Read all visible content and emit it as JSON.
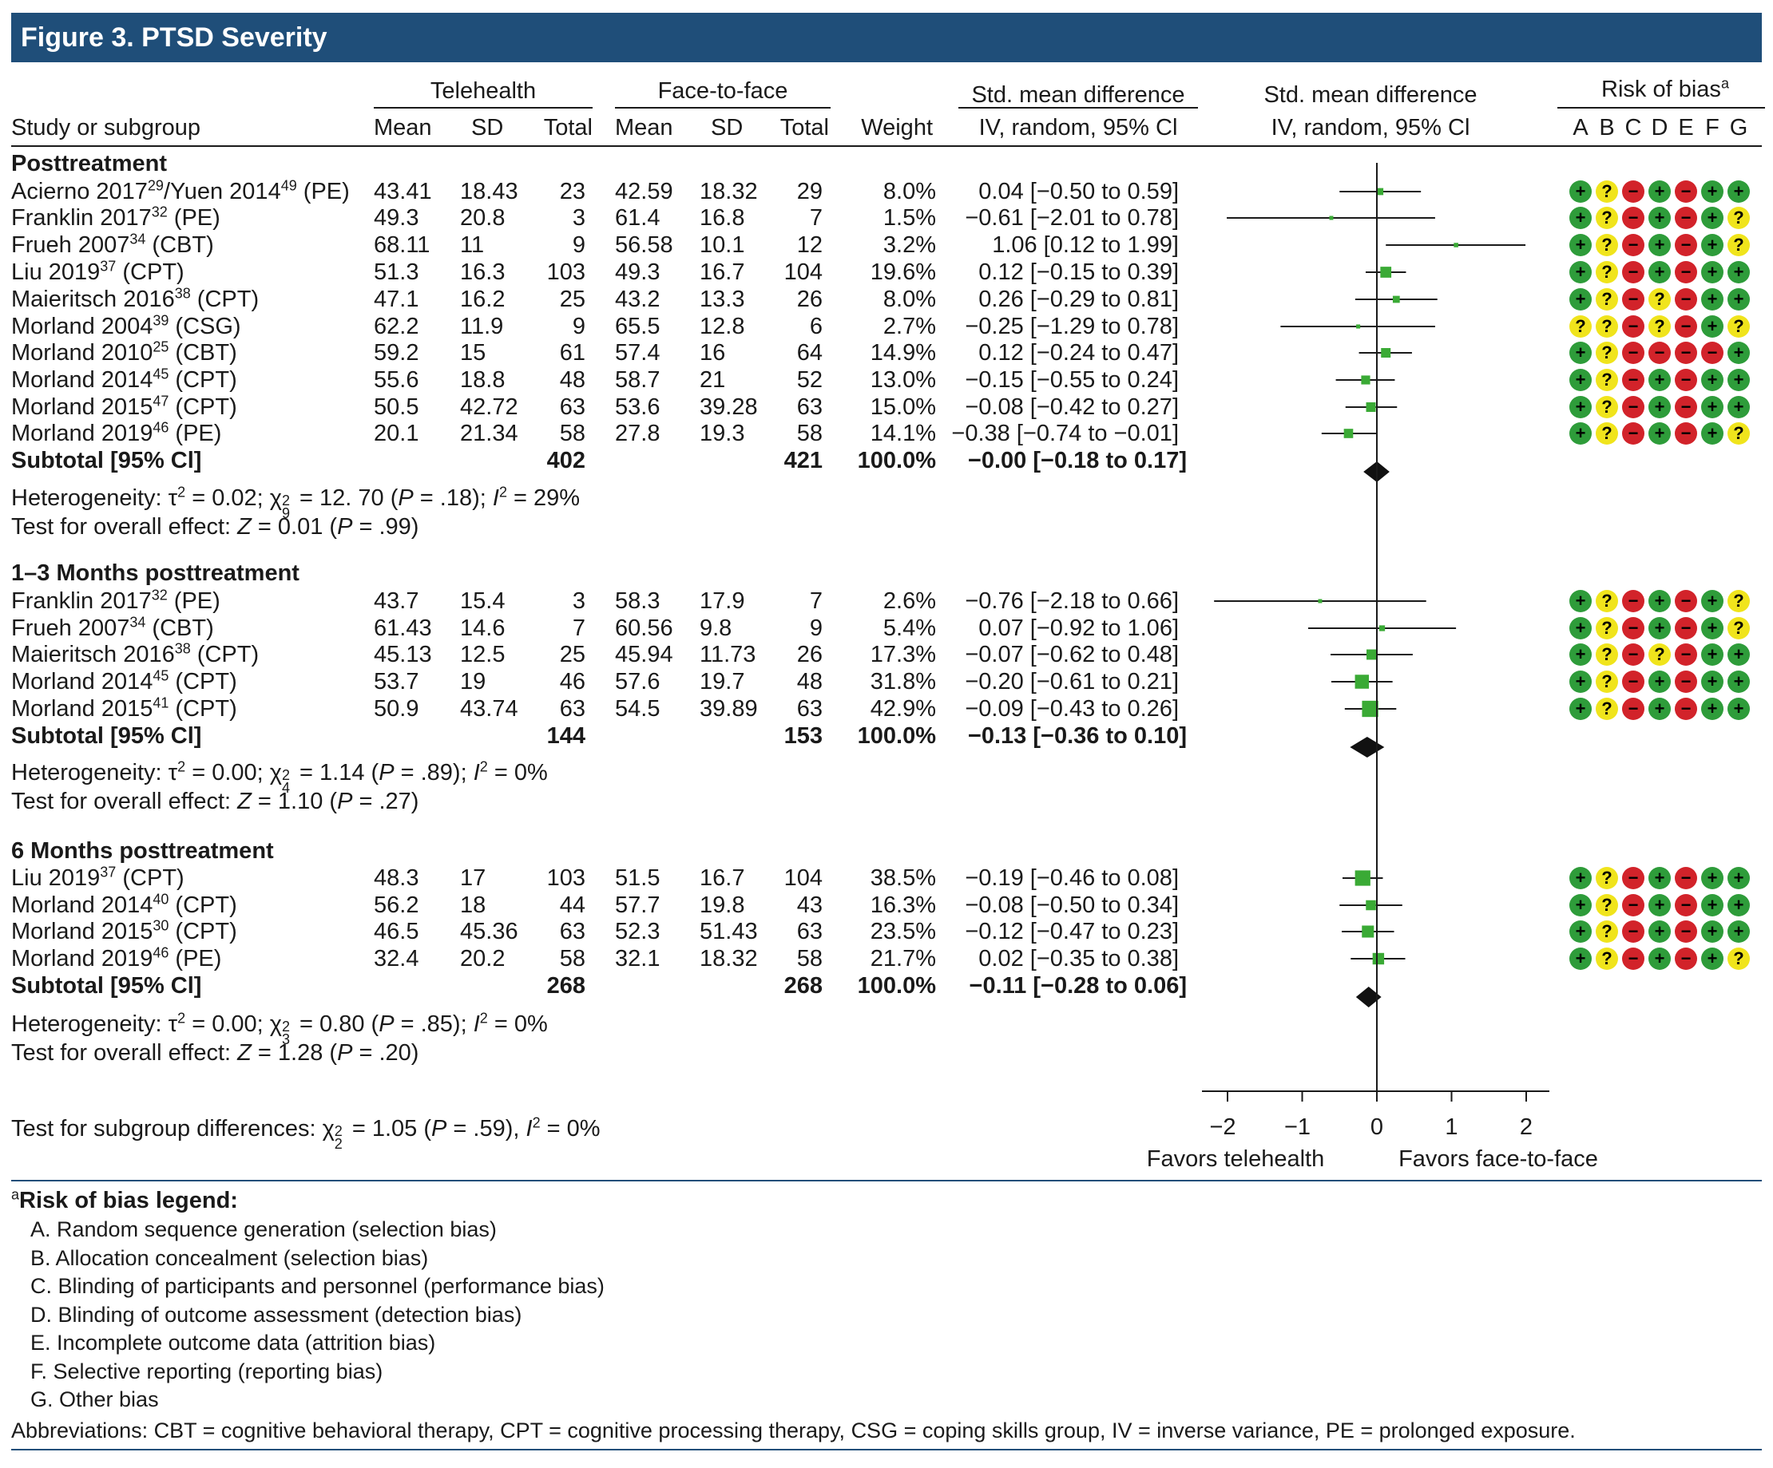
{
  "title": "Figure 3. PTSD Severity",
  "headers": {
    "study": "Study or subgroup",
    "telehealth": "Telehealth",
    "face": "Face-to-face",
    "mean": "Mean",
    "sd": "SD",
    "total": "Total",
    "weight": "Weight",
    "smd_line1": "Std. mean difference",
    "smd_line2": "IV, random, 95% Cl",
    "plot_line1": "Std. mean difference",
    "plot_line2": "IV, random, 95% Cl",
    "rob": "Risk of bias",
    "rob_sup": "a",
    "rob_letters": [
      "A",
      "B",
      "C",
      "D",
      "E",
      "F",
      "G"
    ]
  },
  "groups": [
    {
      "name": "Posttreatment",
      "studies": [
        {
          "name": "Acierno 2017",
          "ref": "29",
          "tail": "/Yuen 2014",
          "ref2": "49",
          "tail2": " (PE)",
          "tm": "43.41",
          "tsd": "18.43",
          "tn": "23",
          "fm": "42.59",
          "fsd": "18.32",
          "fn": "29",
          "w": "8.0%",
          "ci": "0.04 [−0.50 to 0.59]",
          "est": 0.04,
          "lo": -0.5,
          "hi": 0.59,
          "weight": 8.0,
          "rob": "+?-+-++"
        },
        {
          "name": "Franklin 2017",
          "ref": "32",
          "tail": " (PE)",
          "tm": "49.3",
          "tsd": "20.8",
          "tn": "3",
          "fm": "61.4",
          "fsd": "16.8",
          "fn": "7",
          "w": "1.5%",
          "ci": "−0.61 [−2.01 to 0.78]",
          "est": -0.61,
          "lo": -2.01,
          "hi": 0.78,
          "weight": 1.5,
          "rob": "+?-+-+?"
        },
        {
          "name": "Frueh 2007",
          "ref": "34",
          "tail": " (CBT)",
          "tm": "68.11",
          "tsd": "11",
          "tn": "9",
          "fm": "56.58",
          "fsd": "10.1",
          "fn": "12",
          "w": "3.2%",
          "ci": "1.06 [0.12 to 1.99]",
          "est": 1.06,
          "lo": 0.12,
          "hi": 1.99,
          "weight": 3.2,
          "rob": "+?-+-+?"
        },
        {
          "name": "Liu 2019",
          "ref": "37",
          "tail": " (CPT)",
          "tm": "51.3",
          "tsd": "16.3",
          "tn": "103",
          "fm": "49.3",
          "fsd": "16.7",
          "fn": "104",
          "w": "19.6%",
          "ci": "0.12 [−0.15 to 0.39]",
          "est": 0.12,
          "lo": -0.15,
          "hi": 0.39,
          "weight": 19.6,
          "rob": "+?-+-++"
        },
        {
          "name": "Maieritsch 2016",
          "ref": "38",
          "tail": " (CPT)",
          "tm": "47.1",
          "tsd": "16.2",
          "tn": "25",
          "fm": "43.2",
          "fsd": "13.3",
          "fn": "26",
          "w": "8.0%",
          "ci": "0.26 [−0.29 to 0.81]",
          "est": 0.26,
          "lo": -0.29,
          "hi": 0.81,
          "weight": 8.0,
          "rob": "+?-?-++"
        },
        {
          "name": "Morland 2004",
          "ref": "39",
          "tail": " (CSG)",
          "tm": "62.2",
          "tsd": "11.9",
          "tn": "9",
          "fm": "65.5",
          "fsd": "12.8",
          "fn": "6",
          "w": "2.7%",
          "ci": "−0.25 [−1.29 to 0.78]",
          "est": -0.25,
          "lo": -1.29,
          "hi": 0.78,
          "weight": 2.7,
          "rob": "??-?-+?"
        },
        {
          "name": "Morland 2010",
          "ref": "25",
          "tail": " (CBT)",
          "tm": "59.2",
          "tsd": "15",
          "tn": "61",
          "fm": "57.4",
          "fsd": "16",
          "fn": "64",
          "w": "14.9%",
          "ci": "0.12 [−0.24 to 0.47]",
          "est": 0.12,
          "lo": -0.24,
          "hi": 0.47,
          "weight": 14.9,
          "rob": "+?----+"
        },
        {
          "name": "Morland 2014",
          "ref": "45",
          "tail": " (CPT)",
          "tm": "55.6",
          "tsd": "18.8",
          "tn": "48",
          "fm": "58.7",
          "fsd": "21",
          "fn": "52",
          "w": "13.0%",
          "ci": "−0.15 [−0.55 to 0.24]",
          "est": -0.15,
          "lo": -0.55,
          "hi": 0.24,
          "weight": 13.0,
          "rob": "+?-+-++"
        },
        {
          "name": "Morland 2015",
          "ref": "47",
          "tail": " (CPT)",
          "tm": "50.5",
          "tsd": "42.72",
          "tn": "63",
          "fm": "53.6",
          "fsd": "39.28",
          "fn": "63",
          "w": "15.0%",
          "ci": "−0.08 [−0.42 to 0.27]",
          "est": -0.08,
          "lo": -0.42,
          "hi": 0.27,
          "weight": 15.0,
          "rob": "+?-+-++"
        },
        {
          "name": "Morland 2019",
          "ref": "46",
          "tail": " (PE)",
          "tm": "20.1",
          "tsd": "21.34",
          "tn": "58",
          "fm": "27.8",
          "fsd": "19.3",
          "fn": "58",
          "w": "14.1%",
          "ci": "−0.38 [−0.74 to −0.01]",
          "est": -0.38,
          "lo": -0.74,
          "hi": -0.01,
          "weight": 14.1,
          "rob": "+?-+-+?"
        }
      ],
      "subtotal": {
        "label": "Subtotal [95% Cl]",
        "tn": "402",
        "fn": "421",
        "w": "100.0%",
        "ci": "−0.00 [−0.18 to 0.17]",
        "est": 0.0,
        "lo": -0.18,
        "hi": 0.17
      },
      "het": {
        "pre": "Heterogeneity: τ",
        "s1": "2",
        "a": " = 0.02; χ",
        "s2": "2",
        "sb": "9",
        "b": " = 12. 70 (",
        "p": "P",
        "c": " = .18); ",
        "i": "I",
        "s3": "2",
        "d": " = 29%"
      },
      "effect": {
        "pre": "Test for overall effect: ",
        "z": "Z",
        "a": " = 0.01 (",
        "p": "P",
        "b": " = .99)"
      }
    },
    {
      "name": "1–3 Months posttreatment",
      "studies": [
        {
          "name": "Franklin 2017",
          "ref": "32",
          "tail": " (PE)",
          "tm": "43.7",
          "tsd": "15.4",
          "tn": "3",
          "fm": "58.3",
          "fsd": "17.9",
          "fn": "7",
          "w": "2.6%",
          "ci": "−0.76 [−2.18 to 0.66]",
          "est": -0.76,
          "lo": -2.18,
          "hi": 0.66,
          "weight": 2.6,
          "rob": "+?-+-+?"
        },
        {
          "name": "Frueh 2007",
          "ref": "34",
          "tail": " (CBT)",
          "tm": "61.43",
          "tsd": "14.6",
          "tn": "7",
          "fm": "60.56",
          "fsd": "9.8",
          "fn": "9",
          "w": "5.4%",
          "ci": "0.07 [−0.92 to 1.06]",
          "est": 0.07,
          "lo": -0.92,
          "hi": 1.06,
          "weight": 5.4,
          "rob": "+?-+-+?"
        },
        {
          "name": "Maieritsch 2016",
          "ref": "38",
          "tail": " (CPT)",
          "tm": "45.13",
          "tsd": "12.5",
          "tn": "25",
          "fm": "45.94",
          "fsd": "11.73",
          "fn": "26",
          "w": "17.3%",
          "ci": "−0.07 [−0.62 to 0.48]",
          "est": -0.07,
          "lo": -0.62,
          "hi": 0.48,
          "weight": 17.3,
          "rob": "+?-?-++"
        },
        {
          "name": "Morland 2014",
          "ref": "45",
          "tail": " (CPT)",
          "tm": "53.7",
          "tsd": "19",
          "tn": "46",
          "fm": "57.6",
          "fsd": "19.7",
          "fn": "48",
          "w": "31.8%",
          "ci": "−0.20 [−0.61 to 0.21]",
          "est": -0.2,
          "lo": -0.61,
          "hi": 0.21,
          "weight": 31.8,
          "rob": "+?-+-++"
        },
        {
          "name": "Morland 2015",
          "ref": "41",
          "tail": " (CPT)",
          "tm": "50.9",
          "tsd": "43.74",
          "tn": "63",
          "fm": "54.5",
          "fsd": "39.89",
          "fn": "63",
          "w": "42.9%",
          "ci": "−0.09 [−0.43 to 0.26]",
          "est": -0.09,
          "lo": -0.43,
          "hi": 0.26,
          "weight": 42.9,
          "rob": "+?-+-++"
        }
      ],
      "subtotal": {
        "label": "Subtotal [95% Cl]",
        "tn": "144",
        "fn": "153",
        "w": "100.0%",
        "ci": "−0.13 [−0.36 to 0.10]",
        "est": -0.13,
        "lo": -0.36,
        "hi": 0.1
      },
      "het": {
        "pre": "Heterogeneity: τ",
        "s1": "2",
        "a": " = 0.00; χ",
        "s2": "2",
        "sb": "4",
        "b": " = 1.14 (",
        "p": "P",
        "c": " = .89); ",
        "i": "I",
        "s3": "2",
        "d": " = 0%"
      },
      "effect": {
        "pre": "Test for overall effect: ",
        "z": "Z",
        "a": " = 1.10 (",
        "p": "P",
        "b": " = .27)"
      }
    },
    {
      "name": "6 Months posttreatment",
      "studies": [
        {
          "name": "Liu 2019",
          "ref": "37",
          "tail": " (CPT)",
          "tm": "48.3",
          "tsd": "17",
          "tn": "103",
          "fm": "51.5",
          "fsd": "16.7",
          "fn": "104",
          "w": "38.5%",
          "ci": "−0.19 [−0.46 to 0.08]",
          "est": -0.19,
          "lo": -0.46,
          "hi": 0.08,
          "weight": 38.5,
          "rob": "+?-+-++"
        },
        {
          "name": "Morland 2014",
          "ref": "40",
          "tail": " (CPT)",
          "tm": "56.2",
          "tsd": "18",
          "tn": "44",
          "fm": "57.7",
          "fsd": "19.8",
          "fn": "43",
          "w": "16.3%",
          "ci": "−0.08 [−0.50 to 0.34]",
          "est": -0.08,
          "lo": -0.5,
          "hi": 0.34,
          "weight": 16.3,
          "rob": "+?-+-++"
        },
        {
          "name": "Morland 2015",
          "ref": "30",
          "tail": " (CPT)",
          "tm": "46.5",
          "tsd": "45.36",
          "tn": "63",
          "fm": "52.3",
          "fsd": "51.43",
          "fn": "63",
          "w": "23.5%",
          "ci": "−0.12 [−0.47 to 0.23]",
          "est": -0.12,
          "lo": -0.47,
          "hi": 0.23,
          "weight": 23.5,
          "rob": "+?-+-++"
        },
        {
          "name": "Morland 2019",
          "ref": "46",
          "tail": " (PE)",
          "tm": "32.4",
          "tsd": "20.2",
          "tn": "58",
          "fm": "32.1",
          "fsd": "18.32",
          "fn": "58",
          "w": "21.7%",
          "ci": "0.02 [−0.35 to 0.38]",
          "est": 0.02,
          "lo": -0.35,
          "hi": 0.38,
          "weight": 21.7,
          "rob": "+?-+-+?"
        }
      ],
      "subtotal": {
        "label": "Subtotal [95% Cl]",
        "tn": "268",
        "fn": "268",
        "w": "100.0%",
        "ci": "−0.11 [−0.28 to 0.06]",
        "est": -0.11,
        "lo": -0.28,
        "hi": 0.06
      },
      "het": {
        "pre": "Heterogeneity: τ",
        "s1": "2",
        "a": " = 0.00; χ",
        "s2": "2",
        "sb": "3",
        "b": " = 0.80 (",
        "p": "P",
        "c": " = .85); ",
        "i": "I",
        "s3": "2",
        "d": " = 0%"
      },
      "effect": {
        "pre": "Test for overall effect: ",
        "z": "Z",
        "a": " = 1.28 (",
        "p": "P",
        "b": " = .20)"
      }
    }
  ],
  "subgroup_test": {
    "pre": "Test for subgroup differences: χ",
    "s1": "2",
    "sb": "2",
    "a": " = 1.05 (",
    "p": "P",
    "b": " = .59), ",
    "i": "I",
    "s2": "2",
    "c": " = 0%"
  },
  "axis": {
    "ticks": [
      "−2",
      "−1",
      "0",
      "1",
      "2"
    ],
    "favors_left": "Favors telehealth",
    "favors_right": "Favors face-to-face"
  },
  "legend": {
    "sup": "a",
    "title": "Risk of bias legend:",
    "items": [
      "A. Random sequence generation (selection bias)",
      "B. Allocation concealment (selection bias)",
      "C. Blinding of participants and personnel (performance bias)",
      "D. Blinding of outcome assessment (detection bias)",
      "E. Incomplete outcome data (attrition bias)",
      "F. Selective reporting (reporting bias)",
      "G. Other bias"
    ],
    "abbreviations": "Abbreviations: CBT = cognitive behavioral   therapy, CPT =  cognitive processing therapy, CSG = coping skills group, IV = inverse variance, PE = prolonged exposure."
  },
  "colors": {
    "title_bar": "#1f4e79",
    "marker": "#3aaa35",
    "rob_low": "#2e9c3a",
    "rob_unclear": "#f0e41c",
    "rob_high": "#d2232a"
  },
  "chart_data": {
    "type": "forest",
    "xlim": [
      -2,
      2
    ],
    "x_ticks": [
      -2,
      -1,
      0,
      1,
      2
    ],
    "xlabel_left": "Favors telehealth",
    "xlabel_right": "Favors face-to-face"
  }
}
